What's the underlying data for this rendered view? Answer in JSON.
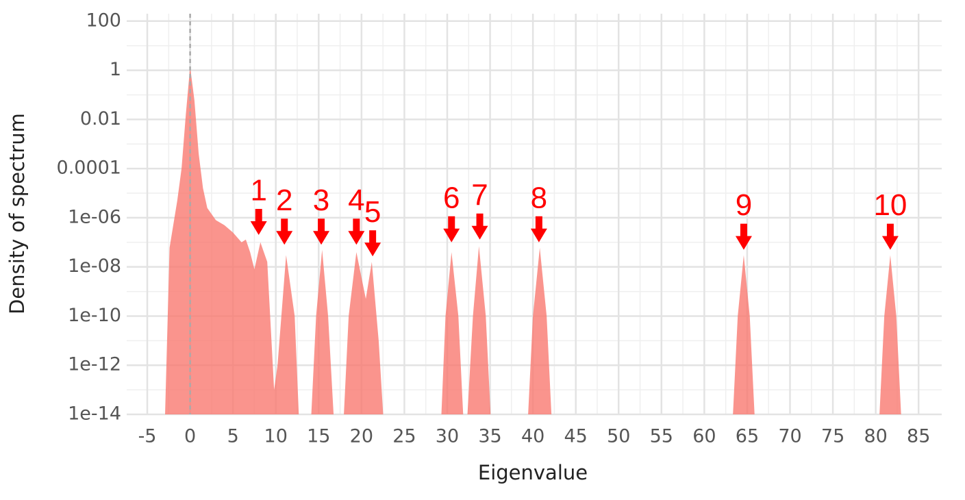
{
  "chart_data": {
    "type": "area",
    "x_label": "Eigenvalue",
    "y_label": "Density of spectrum",
    "log_y": true,
    "grid": true,
    "color": "#f8766d",
    "vline": 0,
    "xlim": [
      -7.4,
      87.7
    ],
    "ylim": [
      1e-14,
      200
    ],
    "xticks": [
      -5,
      0,
      5,
      10,
      15,
      20,
      25,
      30,
      35,
      40,
      45,
      50,
      55,
      60,
      65,
      70,
      75,
      80,
      85
    ],
    "yticks": [
      {
        "value": 1e-14,
        "label": "1e-14"
      },
      {
        "value": 1e-12,
        "label": "1e-12"
      },
      {
        "value": 1e-10,
        "label": "1e-10"
      },
      {
        "value": 1e-08,
        "label": "1e-08"
      },
      {
        "value": 1e-06,
        "label": "1e-06"
      },
      0.0001,
      0.01,
      1,
      100
    ],
    "x": [
      -3,
      -2.4,
      -1.5,
      -1,
      -0.5,
      0,
      0.5,
      1,
      1.5,
      2,
      3,
      4,
      5,
      6,
      6.5,
      7,
      7.5,
      8.2,
      9,
      9.8,
      10.2,
      11.2,
      12.2,
      12.8,
      null,
      14,
      14.7,
      15.4,
      16.1,
      16.9,
      null,
      17.8,
      18.5,
      19.4,
      20.5,
      21.2,
      22,
      22.7,
      null,
      29.2,
      29.8,
      30.5,
      31.3,
      32,
      null,
      32.2,
      33,
      33.7,
      34.5,
      35.2,
      null,
      39.3,
      40,
      40.8,
      41.6,
      42.3,
      null,
      63.2,
      63.9,
      64.6,
      65.3,
      66,
      null,
      80.3,
      81,
      81.7,
      82.4,
      83.1
    ],
    "values": [
      1e-15,
      6e-08,
      5e-06,
      0.0001,
      0.016,
      1.4,
      0.06,
      0.0004,
      1.6e-05,
      2.5e-06,
      8e-07,
      5e-07,
      2.5e-07,
      1e-07,
      1.3e-07,
      4e-08,
      8e-09,
      1e-07,
      1.6e-08,
      1e-13,
      1e-12,
      3e-08,
      1e-10,
      1e-15,
      null,
      1e-15,
      1e-10,
      5e-08,
      1e-10,
      1e-15,
      null,
      1e-15,
      1e-10,
      4e-08,
      5e-10,
      1.6e-08,
      1e-11,
      1e-15,
      null,
      1e-15,
      1e-10,
      4e-08,
      1e-10,
      1e-15,
      null,
      1e-15,
      1e-10,
      7e-08,
      1e-10,
      1e-15,
      null,
      1e-15,
      1e-10,
      6e-08,
      1e-10,
      1e-15,
      null,
      1e-15,
      1e-10,
      3e-08,
      1e-10,
      1e-15,
      null,
      1e-15,
      1e-10,
      3e-08,
      1e-10,
      1e-15
    ],
    "annotations": [
      {
        "label": "1",
        "x": 8.0,
        "y": 2e-07
      },
      {
        "label": "2",
        "x": 11.0,
        "y": 8e-08
      },
      {
        "label": "3",
        "x": 15.3,
        "y": 8e-08
      },
      {
        "label": "4",
        "x": 19.4,
        "y": 8e-08
      },
      {
        "label": "5",
        "x": 21.3,
        "y": 2.7e-08
      },
      {
        "label": "6",
        "x": 30.5,
        "y": 1e-07
      },
      {
        "label": "7",
        "x": 33.8,
        "y": 1.3e-07
      },
      {
        "label": "8",
        "x": 40.7,
        "y": 1e-07
      },
      {
        "label": "9",
        "x": 64.6,
        "y": 5e-08
      },
      {
        "label": "10",
        "x": 81.7,
        "y": 5e-08
      }
    ]
  }
}
